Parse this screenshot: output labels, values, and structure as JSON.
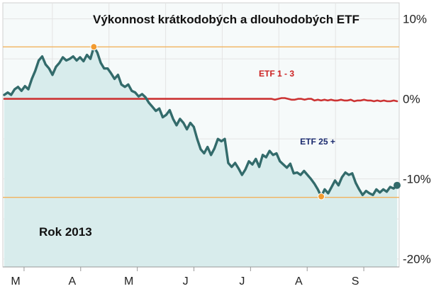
{
  "chart_data": {
    "type": "line",
    "title": "Výkonnost krátkodobých a dlouhodobých ETF",
    "annotation": "Rok 2013",
    "y_unit": "%",
    "ylim": [
      -21,
      12
    ],
    "y_ticks": [
      {
        "value": 10,
        "label": "10%"
      },
      {
        "value": 0,
        "label": "0%"
      },
      {
        "value": -10,
        "label": "-10%"
      },
      {
        "value": -20,
        "label": "-20%"
      }
    ],
    "x_ticks": [
      "M",
      "A",
      "M",
      "J",
      "J",
      "A",
      "S"
    ],
    "grid": true,
    "reference_lines": [
      {
        "value": 6.5,
        "color": "#f2b25c"
      },
      {
        "value": -12.3,
        "color": "#f2b25c"
      }
    ],
    "series": [
      {
        "name": "ETF 1 - 3",
        "color": "#cc3333",
        "values": [
          0,
          0,
          0,
          0,
          0,
          0,
          0,
          0,
          0,
          0,
          0,
          0,
          0,
          0,
          0,
          0,
          0,
          0,
          0,
          0,
          0,
          0,
          0,
          0,
          0,
          0,
          0,
          0,
          0,
          0,
          0,
          0,
          0,
          0,
          0,
          0,
          0,
          0,
          0,
          0,
          0,
          0,
          0,
          0,
          0,
          0,
          0,
          0,
          0,
          0,
          0,
          0,
          0,
          0,
          0,
          0,
          0,
          0,
          0,
          0,
          0,
          0,
          0,
          0,
          0,
          0,
          0,
          0,
          0,
          0,
          0,
          0,
          0,
          0,
          0,
          0,
          0,
          0,
          0,
          0,
          0,
          0,
          -0.1,
          0,
          0.1,
          0.1,
          0,
          -0.1,
          -0.1,
          0,
          0,
          -0.1,
          0,
          0,
          -0.2,
          -0.1,
          -0.2,
          -0.1,
          -0.2,
          -0.1,
          -0.2,
          -0.2,
          -0.1,
          -0.2,
          -0.2,
          -0.1,
          -0.3,
          -0.2,
          -0.2,
          -0.1,
          -0.2,
          -0.2,
          -0.3,
          -0.2,
          -0.3,
          -0.2,
          -0.3,
          -0.3,
          -0.2,
          -0.3
        ]
      },
      {
        "name": "ETF 25 +",
        "color": "#336b6b",
        "values": [
          0.5,
          0.8,
          0.5,
          1.2,
          1.5,
          1.0,
          1.6,
          1.2,
          2.5,
          3.5,
          4.8,
          5.3,
          4.3,
          3.8,
          3.0,
          4.0,
          4.5,
          5.2,
          4.8,
          5.0,
          5.3,
          4.8,
          5.2,
          4.7,
          5.5,
          5.0,
          6.5,
          5.8,
          4.5,
          3.8,
          3.8,
          3.2,
          2.5,
          3.0,
          1.8,
          1.5,
          1.8,
          1.0,
          0.8,
          0.3,
          0.6,
          0.2,
          -0.5,
          -1.0,
          -1.5,
          -1.2,
          -2.3,
          -2.0,
          -1.4,
          -2.5,
          -3.3,
          -2.5,
          -3.0,
          -3.8,
          -3.0,
          -3.5,
          -5.0,
          -6.3,
          -6.8,
          -6.0,
          -7.0,
          -6.2,
          -5.0,
          -5.3,
          -5.0,
          -8.0,
          -8.5,
          -8.0,
          -8.7,
          -9.5,
          -8.8,
          -7.8,
          -8.2,
          -7.5,
          -8.5,
          -7.0,
          -7.3,
          -6.5,
          -7.0,
          -6.8,
          -7.8,
          -8.2,
          -8.6,
          -8.1,
          -9.3,
          -9.2,
          -9.5,
          -9.0,
          -9.5,
          -10.0,
          -10.6,
          -11.3,
          -12.2,
          -11.3,
          -11.8,
          -11.0,
          -10.2,
          -10.8,
          -9.8,
          -9.2,
          -9.5,
          -9.3,
          -10.5,
          -11.3,
          -12.0,
          -11.5,
          -11.8,
          -12.0,
          -11.3,
          -11.7,
          -11.3,
          -11.6,
          -11.0,
          -11.2,
          -10.8
        ]
      }
    ]
  }
}
